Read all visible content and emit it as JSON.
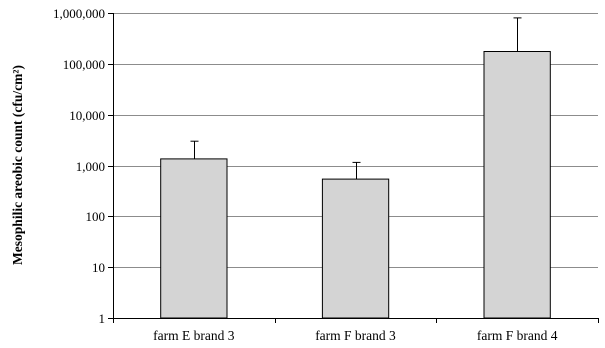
{
  "chart_data": {
    "type": "bar",
    "title": "",
    "xlabel": "",
    "ylabel": "Mesophilic areobic count (cfu/cm²)",
    "yscale": "log",
    "ylim": [
      1,
      1000000
    ],
    "grid": true,
    "categories": [
      "farm E brand 3",
      "farm F brand 3",
      "farm F brand 4"
    ],
    "values": [
      1350,
      540,
      175000
    ],
    "error_upper": [
      3000,
      1150,
      800000
    ],
    "y_ticks": [
      {
        "value": 1,
        "label": "1"
      },
      {
        "value": 10,
        "label": "10"
      },
      {
        "value": 100,
        "label": "100"
      },
      {
        "value": 1000,
        "label": "1,000"
      },
      {
        "value": 10000,
        "label": "10,000"
      },
      {
        "value": 100000,
        "label": "100,000"
      },
      {
        "value": 1000000,
        "label": "1,000,000"
      }
    ],
    "colors": {
      "bar_fill": "#d4d4d4",
      "bar_stroke": "#000000",
      "grid": "#8c8c8c",
      "axis": "#000000"
    }
  }
}
